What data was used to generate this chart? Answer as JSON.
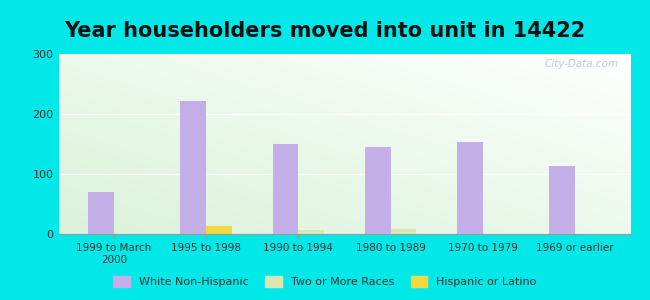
{
  "title": "Year householders moved into unit in 14422",
  "categories": [
    "1999 to March\n2000",
    "1995 to 1998",
    "1990 to 1994",
    "1980 to 1989",
    "1970 to 1979",
    "1969 or earlier"
  ],
  "white_non_hispanic": [
    70,
    222,
    150,
    145,
    153,
    113
  ],
  "two_or_more_races": [
    0,
    0,
    6,
    8,
    0,
    0
  ],
  "hispanic_or_latino": [
    0,
    13,
    0,
    0,
    0,
    0
  ],
  "bar_width": 0.28,
  "colors": {
    "white_non_hispanic": "#c4aee8",
    "two_or_more_races": "#d8e8b0",
    "hispanic_or_latino": "#f0d840"
  },
  "ylim": [
    0,
    300
  ],
  "yticks": [
    0,
    100,
    200,
    300
  ],
  "background_outer": "#00e8e8",
  "title_fontsize": 15,
  "watermark": "City-Data.com"
}
